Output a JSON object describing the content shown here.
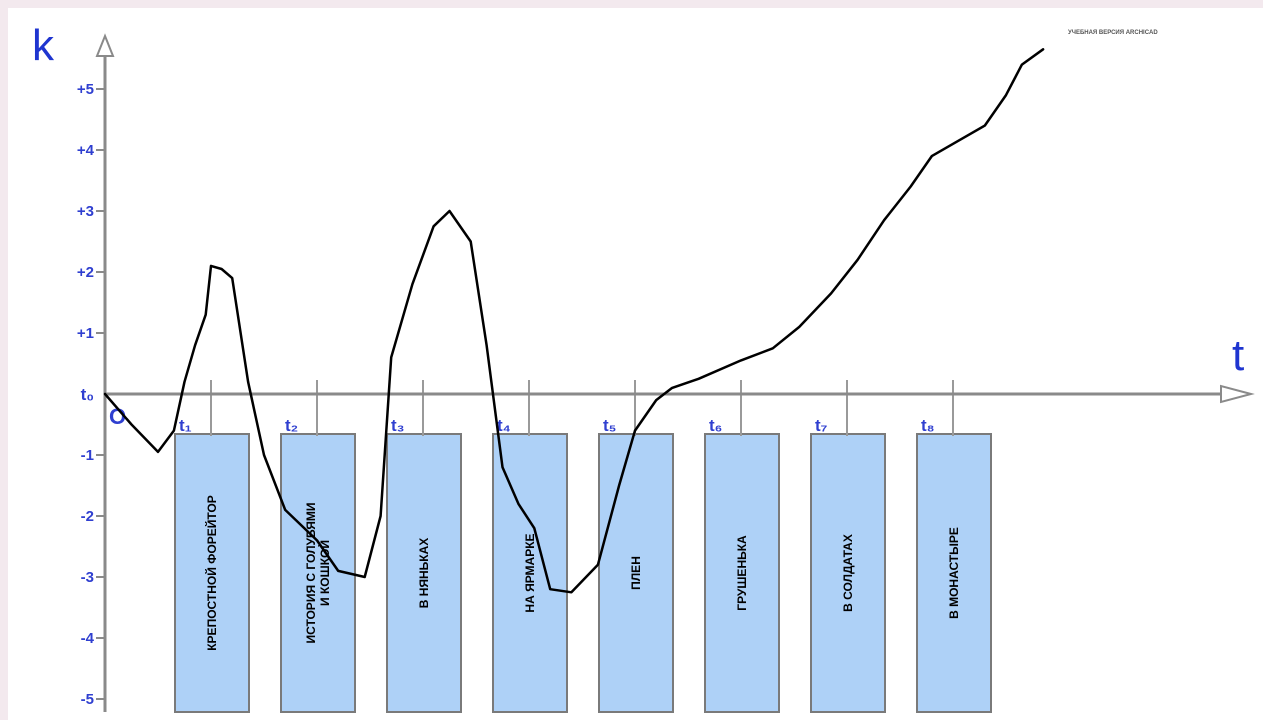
{
  "chart_data": {
    "type": "line",
    "y_axis_label": "k",
    "x_axis_label": "t",
    "origin_label": "O",
    "zero_label": "t₀",
    "yticks": [
      5,
      4,
      3,
      2,
      1,
      -1,
      -2,
      -3,
      -4,
      -5
    ],
    "ytick_labels": [
      "+5",
      "+4",
      "+3",
      "+2",
      "+1",
      "-1",
      "-2",
      "-3",
      "-4",
      "-5"
    ],
    "ylim": [
      -5.2,
      5.8
    ],
    "xlim": [
      0,
      10.5
    ],
    "moments": [
      {
        "label": "t₁",
        "x": 1,
        "episode": "КРЕПОСТНОЙ ФОРЕЙТОР",
        "episode_lines": [
          "КРЕПОСТНОЙ ФОРЕЙТОР"
        ]
      },
      {
        "label": "t₂",
        "x": 2,
        "episode": "ИСТОРИЯ С ГОЛУБЯМИ И КОШКОЙ",
        "episode_lines": [
          "ИСТОРИЯ С ГОЛУБЯМИ",
          "И КОШКОЙ"
        ]
      },
      {
        "label": "t₃",
        "x": 3,
        "episode": "В НЯНЬКАХ",
        "episode_lines": [
          "В НЯНЬКАХ"
        ]
      },
      {
        "label": "t₄",
        "x": 4,
        "episode": "НА ЯРМАРКЕ",
        "episode_lines": [
          "НА ЯРМАРКЕ"
        ]
      },
      {
        "label": "t₅",
        "x": 5,
        "episode": "ПЛЕН",
        "episode_lines": [
          "ПЛЕН"
        ]
      },
      {
        "label": "t₆",
        "x": 6,
        "episode": "ГРУШЕНЬКА",
        "episode_lines": [
          "ГРУШЕНЬКА"
        ]
      },
      {
        "label": "t₇",
        "x": 7,
        "episode": "В СОЛДАТАХ",
        "episode_lines": [
          "В СОЛДАТАХ"
        ]
      },
      {
        "label": "t₈",
        "x": 8,
        "episode": "В МОНАСТЫРЕ",
        "episode_lines": [
          "В МОНАСТЫРЕ"
        ]
      }
    ],
    "curve": {
      "name": "",
      "points": [
        [
          0,
          0
        ],
        [
          0.25,
          -0.5
        ],
        [
          0.5,
          -0.95
        ],
        [
          0.65,
          -0.6
        ],
        [
          0.75,
          0.2
        ],
        [
          0.85,
          0.8
        ],
        [
          0.95,
          1.3
        ],
        [
          1.0,
          2.1
        ],
        [
          1.1,
          2.05
        ],
        [
          1.2,
          1.9
        ],
        [
          1.35,
          0.2
        ],
        [
          1.5,
          -1.0
        ],
        [
          1.7,
          -1.9
        ],
        [
          2.0,
          -2.4
        ],
        [
          2.2,
          -2.9
        ],
        [
          2.45,
          -3.0
        ],
        [
          2.6,
          -2.0
        ],
        [
          2.7,
          0.6
        ],
        [
          2.9,
          1.8
        ],
        [
          3.1,
          2.75
        ],
        [
          3.25,
          3.0
        ],
        [
          3.45,
          2.5
        ],
        [
          3.6,
          0.8
        ],
        [
          3.75,
          -1.2
        ],
        [
          3.9,
          -1.8
        ],
        [
          4.05,
          -2.2
        ],
        [
          4.2,
          -3.2
        ],
        [
          4.4,
          -3.25
        ],
        [
          4.65,
          -2.8
        ],
        [
          4.85,
          -1.5
        ],
        [
          5.0,
          -0.6
        ],
        [
          5.2,
          -0.1
        ],
        [
          5.35,
          0.1
        ],
        [
          5.6,
          0.25
        ],
        [
          6.0,
          0.55
        ],
        [
          6.3,
          0.75
        ],
        [
          6.55,
          1.1
        ],
        [
          6.85,
          1.65
        ],
        [
          7.1,
          2.2
        ],
        [
          7.35,
          2.85
        ],
        [
          7.6,
          3.4
        ],
        [
          7.8,
          3.9
        ],
        [
          8.05,
          4.15
        ],
        [
          8.3,
          4.4
        ],
        [
          8.5,
          4.9
        ],
        [
          8.65,
          5.4
        ],
        [
          8.85,
          5.65
        ]
      ]
    }
  },
  "watermark": "УЧЕБНАЯ ВЕРСИЯ ARCHICAD"
}
